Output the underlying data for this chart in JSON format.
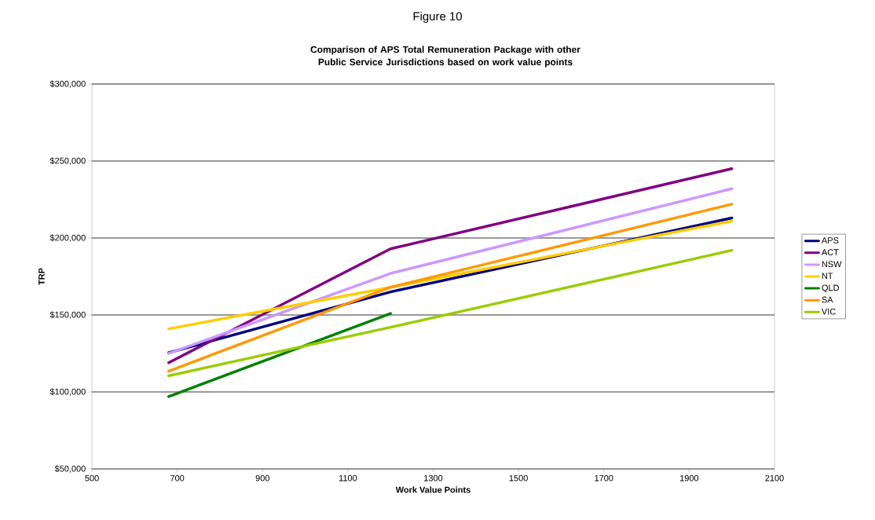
{
  "chart_data": {
    "type": "line",
    "title": "Figure 10",
    "subtitle": "Comparison of APS Total Remuneration Package  with other Public Service Jurisdictions based on work value points",
    "xlabel": "Work Value Points",
    "ylabel": "TRP",
    "xlim": [
      500,
      2100
    ],
    "xticks": [
      500,
      700,
      900,
      1100,
      1300,
      1500,
      1700,
      1900,
      2100
    ],
    "ylim": [
      50000,
      300000
    ],
    "yticks": [
      {
        "value": 50000,
        "label": "$50,000"
      },
      {
        "value": 100000,
        "label": "$100,000"
      },
      {
        "value": 150000,
        "label": "$150,000"
      },
      {
        "value": 200000,
        "label": "$200,000"
      },
      {
        "value": 250000,
        "label": "$250,000"
      },
      {
        "value": 300000,
        "label": "$300,000"
      }
    ],
    "grid": "y",
    "legend": "right",
    "marker": "none",
    "line_style": "solid",
    "x": [
      680,
      1200,
      2000
    ],
    "series": [
      {
        "name": "APS",
        "color": "#000080",
        "values": [
          125500,
          165000,
          213000
        ]
      },
      {
        "name": "ACT",
        "color": "#800080",
        "values": [
          119000,
          193000,
          245000
        ]
      },
      {
        "name": "NSW",
        "color": "#cc99ff",
        "values": [
          125000,
          177000,
          232000
        ]
      },
      {
        "name": "NT",
        "color": "#ffcc00",
        "values": [
          141000,
          168000,
          211000
        ]
      },
      {
        "name": "QLD",
        "color": "#008000",
        "x": [
          680,
          1200
        ],
        "values": [
          97000,
          151000
        ]
      },
      {
        "name": "SA",
        "color": "#ff9900",
        "values": [
          113500,
          168000,
          222000
        ]
      },
      {
        "name": "VIC",
        "color": "#99cc00",
        "values": [
          110500,
          142000,
          192000
        ]
      }
    ]
  }
}
